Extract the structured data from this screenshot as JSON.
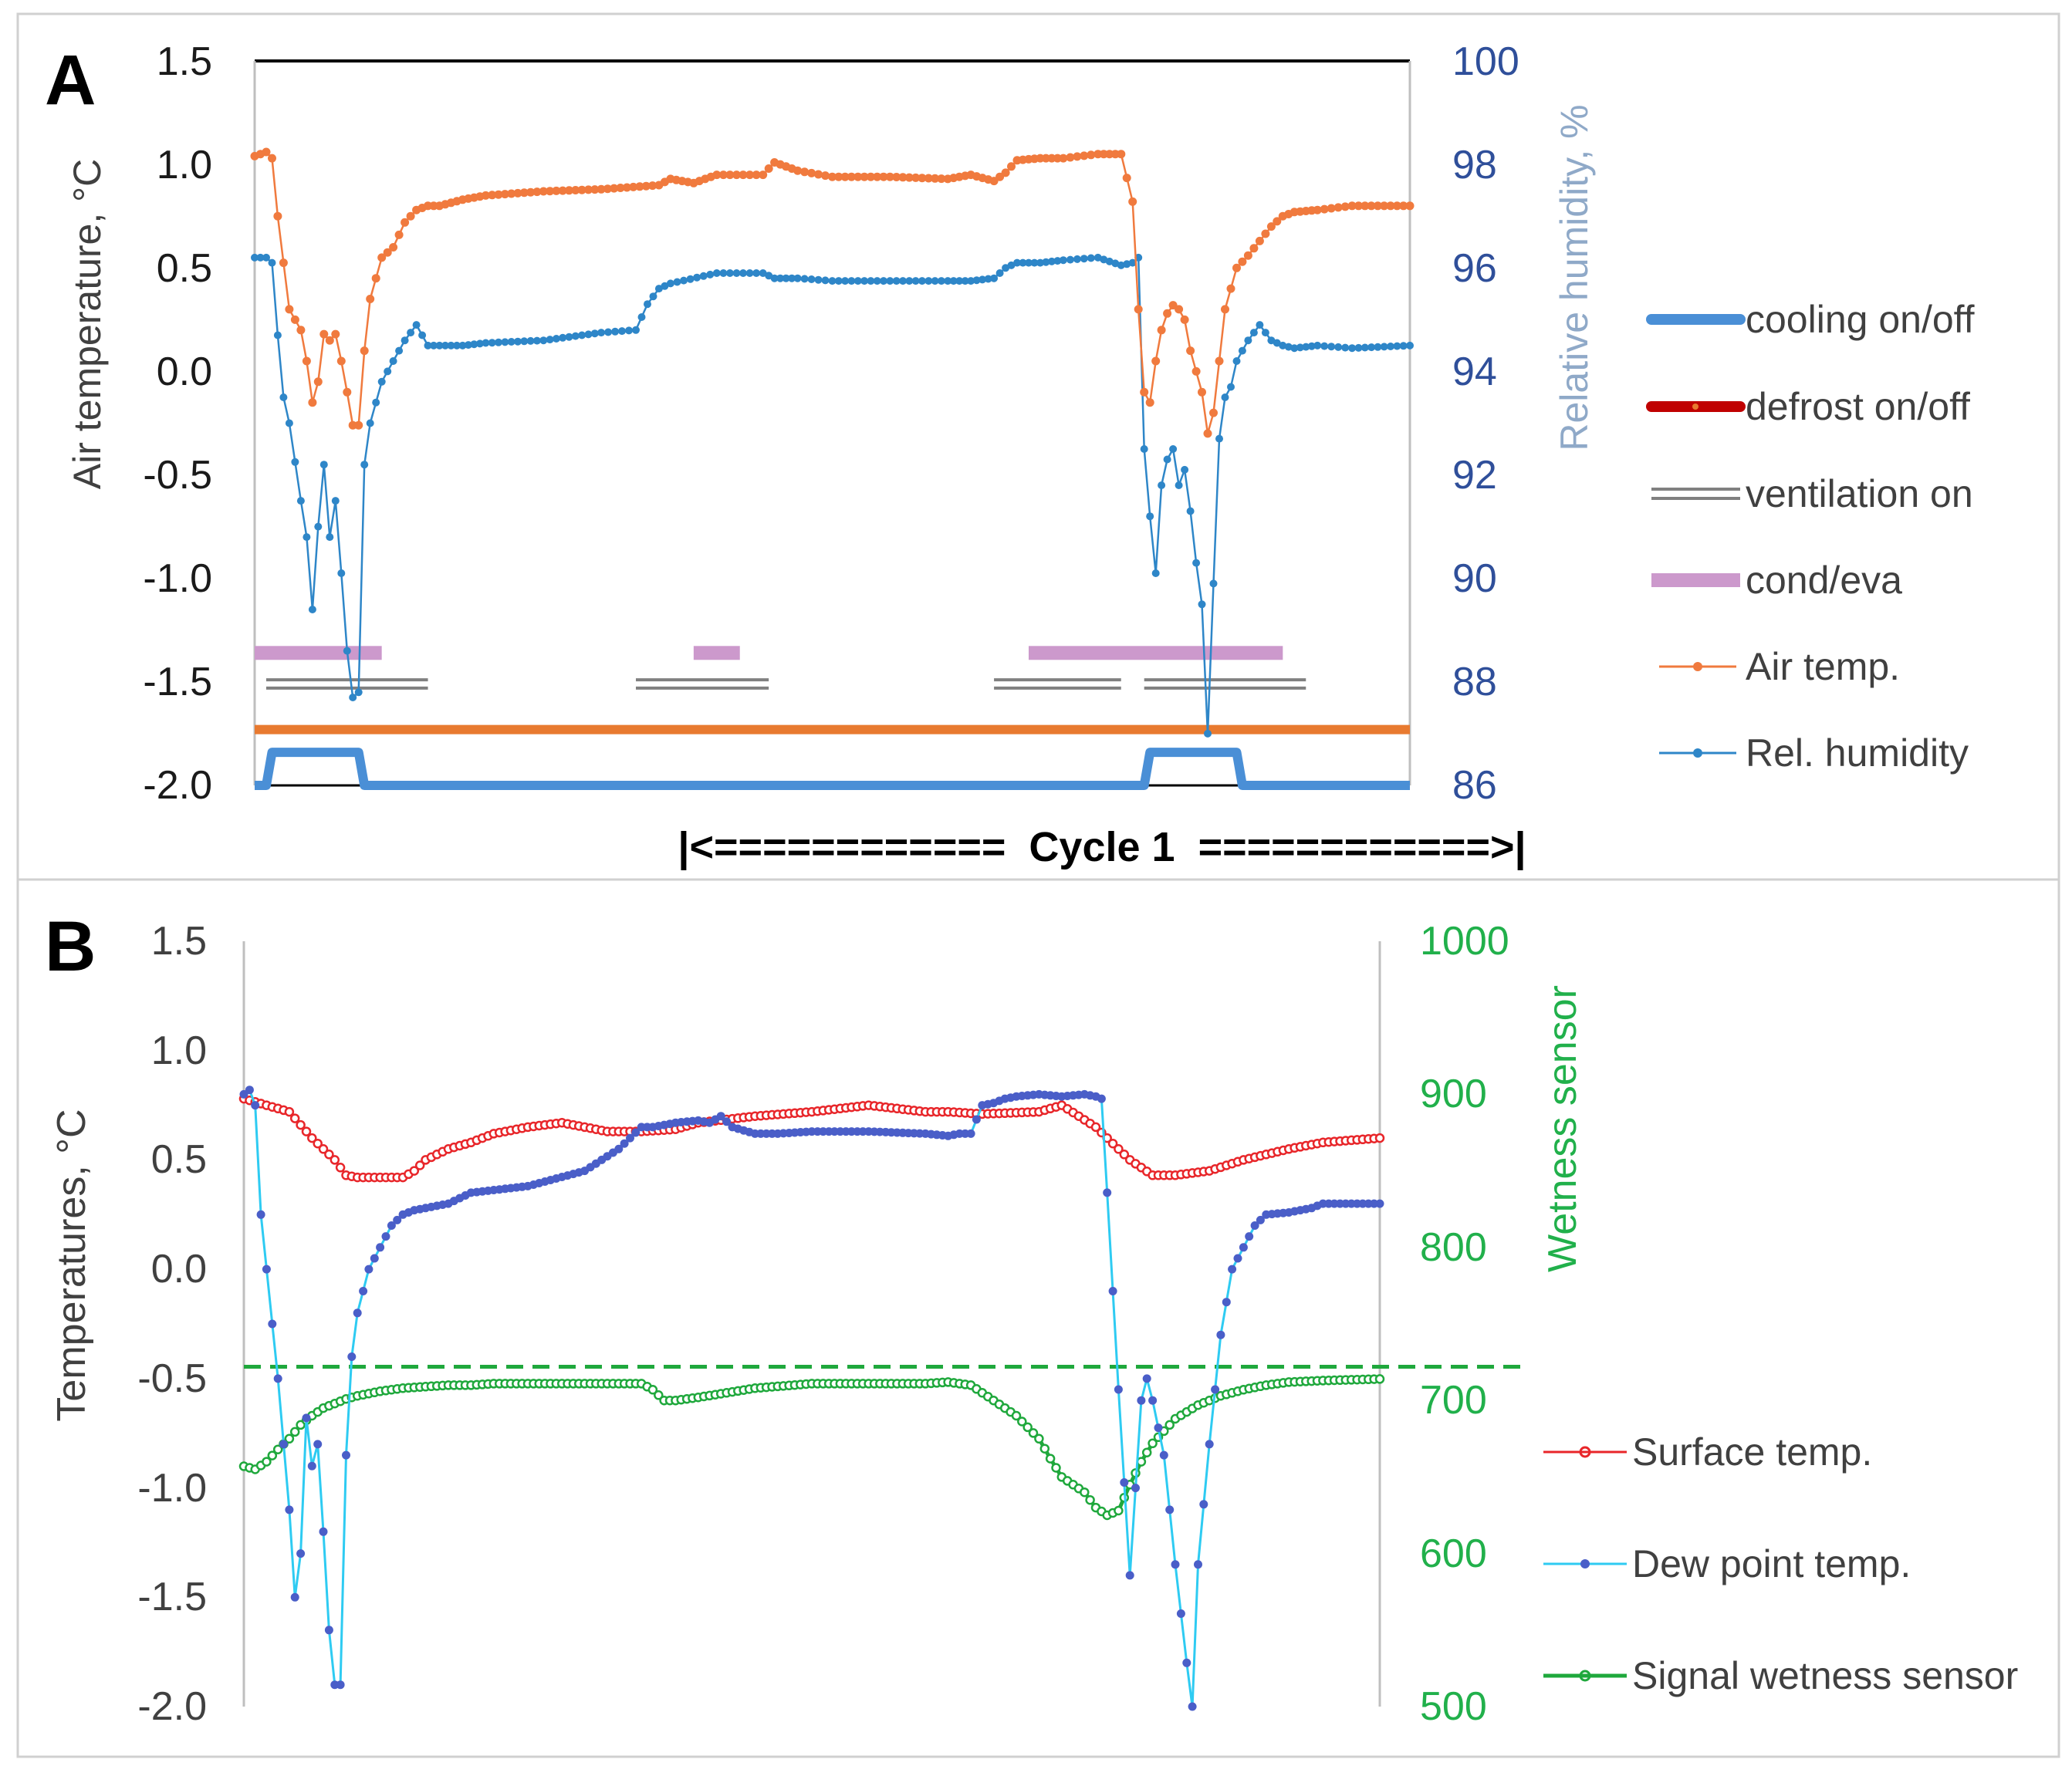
{
  "chart_data": [
    {
      "type": "line",
      "panel_label": "A",
      "ylabel": "Air temperature, °C",
      "y2label": "Relative humidity, %",
      "ylim": [
        -2.0,
        1.5
      ],
      "y2lim": [
        86,
        100
      ],
      "ytick_labels": [
        "1.5",
        "1.0",
        "0.5",
        "0.0",
        "-0.5",
        "-1.0",
        "-1.5",
        "-2.0"
      ],
      "y2tick_labels": [
        "100",
        "98",
        "96",
        "94",
        "92",
        "90",
        "88",
        "86"
      ],
      "xlim": [
        0,
        100
      ],
      "cycle_label": "|<============  Cycle 1  ============>|",
      "colors": {
        "air": "#F07A3E",
        "rh": "#2E86C8",
        "cooling": "#4A8FD6",
        "defrost": "#E87A30",
        "ventilation": "#808080",
        "condeva": "#CC99CC",
        "rhAxis": "#2F4F9A",
        "rhLabel": "#8FA9C8"
      },
      "legend": [
        "cooling on/off",
        "defrost on/off",
        "ventilation on",
        "cond/eva",
        "Air temp.",
        "Rel. humidity"
      ],
      "series": [
        {
          "name": "Air temp.",
          "axis": "left",
          "x": [
            0,
            1,
            1.5,
            2,
            3,
            4,
            4.5,
            5,
            5.5,
            6,
            6.5,
            7,
            7.5,
            8,
            8.5,
            9,
            9.5,
            10,
            11,
            12,
            13,
            14,
            15,
            16,
            18,
            20,
            25,
            30,
            35,
            36,
            38,
            40,
            44,
            45,
            47,
            50,
            55,
            60,
            62,
            64,
            65,
            66,
            68,
            70,
            73,
            75,
            76,
            76.5,
            77,
            77.5,
            78,
            78.5,
            79,
            79.5,
            80,
            80.5,
            81,
            82,
            82.5,
            83,
            84,
            85,
            86,
            87,
            88,
            89,
            90,
            92,
            95,
            100
          ],
          "values": [
            1.04,
            1.06,
            1.03,
            0.75,
            0.3,
            0.2,
            0.05,
            -0.15,
            -0.05,
            0.18,
            0.15,
            0.18,
            0.05,
            -0.1,
            -0.26,
            -0.26,
            0.1,
            0.35,
            0.55,
            0.6,
            0.72,
            0.78,
            0.8,
            0.8,
            0.83,
            0.85,
            0.87,
            0.88,
            0.9,
            0.93,
            0.91,
            0.95,
            0.95,
            1.01,
            0.97,
            0.94,
            0.94,
            0.93,
            0.95,
            0.92,
            0.96,
            1.02,
            1.03,
            1.03,
            1.05,
            1.05,
            0.82,
            0.3,
            -0.1,
            -0.15,
            0.05,
            0.2,
            0.28,
            0.32,
            0.3,
            0.25,
            0.1,
            -0.1,
            -0.3,
            -0.2,
            0.3,
            0.5,
            0.56,
            0.63,
            0.7,
            0.75,
            0.77,
            0.78,
            0.8,
            0.8
          ]
        },
        {
          "name": "Rel. humidity",
          "axis": "right",
          "x": [
            0,
            1,
            1.5,
            2,
            2.5,
            3,
            4,
            4.5,
            5,
            5.5,
            6,
            6.5,
            7,
            7.5,
            8,
            8.5,
            9,
            9.5,
            10,
            11,
            12,
            13,
            14,
            14.5,
            15,
            16,
            18,
            20,
            25,
            30,
            33,
            34,
            35,
            36,
            40,
            44,
            45,
            47,
            50,
            55,
            60,
            62,
            64,
            65,
            66,
            68,
            70,
            73,
            75,
            76,
            76.5,
            77,
            77.5,
            78,
            78.5,
            79,
            79.5,
            80,
            80.5,
            81,
            81.5,
            82,
            82.5,
            83,
            83.5,
            84,
            84.5,
            85,
            86,
            87,
            88,
            89,
            90,
            92,
            95,
            100
          ],
          "values": [
            96.2,
            96.2,
            96.1,
            94.7,
            93.5,
            93,
            91.5,
            90.8,
            89.4,
            91,
            92.2,
            90.8,
            91.5,
            90.1,
            88.6,
            87.7,
            87.8,
            92.2,
            93,
            93.8,
            94.2,
            94.6,
            94.9,
            94.7,
            94.5,
            94.5,
            94.5,
            94.55,
            94.6,
            94.75,
            94.8,
            95.3,
            95.6,
            95.7,
            95.9,
            95.9,
            95.8,
            95.8,
            95.75,
            95.75,
            95.75,
            95.75,
            95.8,
            96.0,
            96.1,
            96.1,
            96.15,
            96.2,
            96.05,
            96.1,
            96.2,
            92.5,
            91.2,
            90.1,
            91.8,
            92.3,
            92.5,
            91.8,
            92.1,
            91.3,
            90.3,
            89.5,
            87.0,
            89.9,
            92.7,
            93.5,
            93.7,
            94.2,
            94.6,
            94.9,
            94.6,
            94.5,
            94.45,
            94.5,
            94.45,
            94.5
          ]
        }
      ],
      "bands": {
        "cooling": [
          [
            0,
            1.5
          ],
          [
            1.5,
            9.5
          ],
          [
            9.5,
            77.5
          ],
          [
            77.5,
            85.5
          ],
          [
            85.5,
            100
          ]
        ],
        "condeva": [
          [
            0,
            11
          ],
          [
            38,
            42
          ],
          [
            67,
            89
          ]
        ],
        "ventilation": [
          [
            1,
            15
          ],
          [
            33,
            44.5
          ],
          [
            64,
            75
          ],
          [
            77,
            91
          ]
        ]
      }
    },
    {
      "type": "line",
      "panel_label": "B",
      "ylabel": "Temperatures, °C",
      "y2label": "Wetness sensor",
      "ylim": [
        -2.0,
        1.5
      ],
      "y2lim": [
        500,
        1000
      ],
      "ytick_labels": [
        "1.5",
        "1.0",
        "0.5",
        "0.0",
        "-0.5",
        "-1.0",
        "-1.5",
        "-2.0"
      ],
      "y2tick_labels": [
        "1000",
        "900",
        "800",
        "700",
        "600",
        "500"
      ],
      "xlim": [
        0,
        100
      ],
      "threshold": 722,
      "colors": {
        "surface": "#E8262A",
        "dew": "#2ECBF2",
        "dewMarker": "#4A5EC8",
        "wetness": "#1FA83C",
        "wetAxis": "#21B04B"
      },
      "legend": [
        "Surface temp.",
        "Dew point temp.",
        "Signal wetness sensor"
      ],
      "series": [
        {
          "name": "Surface temp.",
          "axis": "left",
          "x": [
            0,
            2,
            4,
            6,
            8,
            9,
            10,
            12,
            14,
            15,
            16,
            18,
            20,
            22,
            25,
            28,
            30,
            32,
            35,
            38,
            40,
            45,
            50,
            55,
            60,
            62,
            65,
            70,
            72,
            75,
            78,
            80,
            82,
            85,
            88,
            92,
            95,
            100
          ],
          "values": [
            0.78,
            0.75,
            0.72,
            0.6,
            0.5,
            0.43,
            0.42,
            0.42,
            0.42,
            0.45,
            0.5,
            0.55,
            0.58,
            0.62,
            0.65,
            0.67,
            0.65,
            0.63,
            0.63,
            0.64,
            0.67,
            0.7,
            0.72,
            0.75,
            0.72,
            0.72,
            0.71,
            0.72,
            0.75,
            0.65,
            0.5,
            0.43,
            0.43,
            0.45,
            0.5,
            0.55,
            0.58,
            0.6
          ]
        },
        {
          "name": "Dew point temp.",
          "axis": "left",
          "x": [
            0,
            0.5,
            1,
            1.5,
            3,
            4,
            4.5,
            5,
            5.5,
            6,
            6.5,
            7,
            7.5,
            8,
            8.5,
            9,
            9.5,
            10,
            11,
            12,
            13,
            14,
            15,
            18,
            20,
            25,
            30,
            33,
            34,
            35,
            36,
            38,
            40,
            41,
            42,
            43,
            45,
            47,
            50,
            55,
            60,
            62,
            63,
            64,
            65,
            66,
            67,
            68,
            70,
            72,
            74,
            75,
            75.5,
            76,
            77,
            78,
            79,
            79.5,
            80,
            81,
            82,
            83,
            83.5,
            84,
            85,
            86,
            87,
            88,
            89,
            90,
            92,
            94,
            95,
            100
          ],
          "values": [
            0.8,
            0.82,
            0.75,
            0.25,
            -0.5,
            -1.1,
            -1.5,
            -1.3,
            -0.68,
            -0.9,
            -0.8,
            -1.2,
            -1.65,
            -1.9,
            -1.9,
            -0.85,
            -0.4,
            -0.2,
            0.0,
            0.1,
            0.2,
            0.25,
            0.27,
            0.3,
            0.35,
            0.38,
            0.45,
            0.55,
            0.6,
            0.65,
            0.65,
            0.67,
            0.68,
            0.67,
            0.7,
            0.65,
            0.62,
            0.62,
            0.63,
            0.63,
            0.62,
            0.61,
            0.62,
            0.62,
            0.75,
            0.76,
            0.78,
            0.79,
            0.8,
            0.79,
            0.8,
            0.79,
            0.78,
            0.35,
            -0.55,
            -1.4,
            -0.6,
            -0.5,
            -0.6,
            -0.85,
            -1.35,
            -1.8,
            -2.0,
            -1.35,
            -0.8,
            -0.3,
            0.0,
            0.1,
            0.2,
            0.25,
            0.26,
            0.28,
            0.3,
            0.3
          ]
        },
        {
          "name": "Signal wetness sensor",
          "axis": "right",
          "x": [
            0,
            1,
            2,
            3,
            4,
            5,
            6,
            7,
            8,
            9,
            10,
            12,
            14,
            16,
            18,
            20,
            22,
            25,
            30,
            35,
            36,
            37,
            38,
            40,
            45,
            50,
            55,
            60,
            62,
            64,
            66,
            68,
            70,
            71,
            72,
            74,
            75,
            76,
            77,
            78,
            79,
            80,
            81,
            82,
            84,
            86,
            88,
            90,
            92,
            95,
            100
          ],
          "values": [
            657,
            655,
            660,
            668,
            675,
            684,
            690,
            695,
            698,
            701,
            703,
            706,
            708,
            709,
            710,
            710,
            711,
            711,
            711,
            711,
            707,
            700,
            700,
            702,
            708,
            711,
            711,
            711,
            712,
            710,
            700,
            690,
            675,
            662,
            650,
            640,
            630,
            625,
            628,
            645,
            660,
            672,
            680,
            688,
            697,
            703,
            707,
            710,
            712,
            713,
            714
          ]
        }
      ]
    }
  ]
}
